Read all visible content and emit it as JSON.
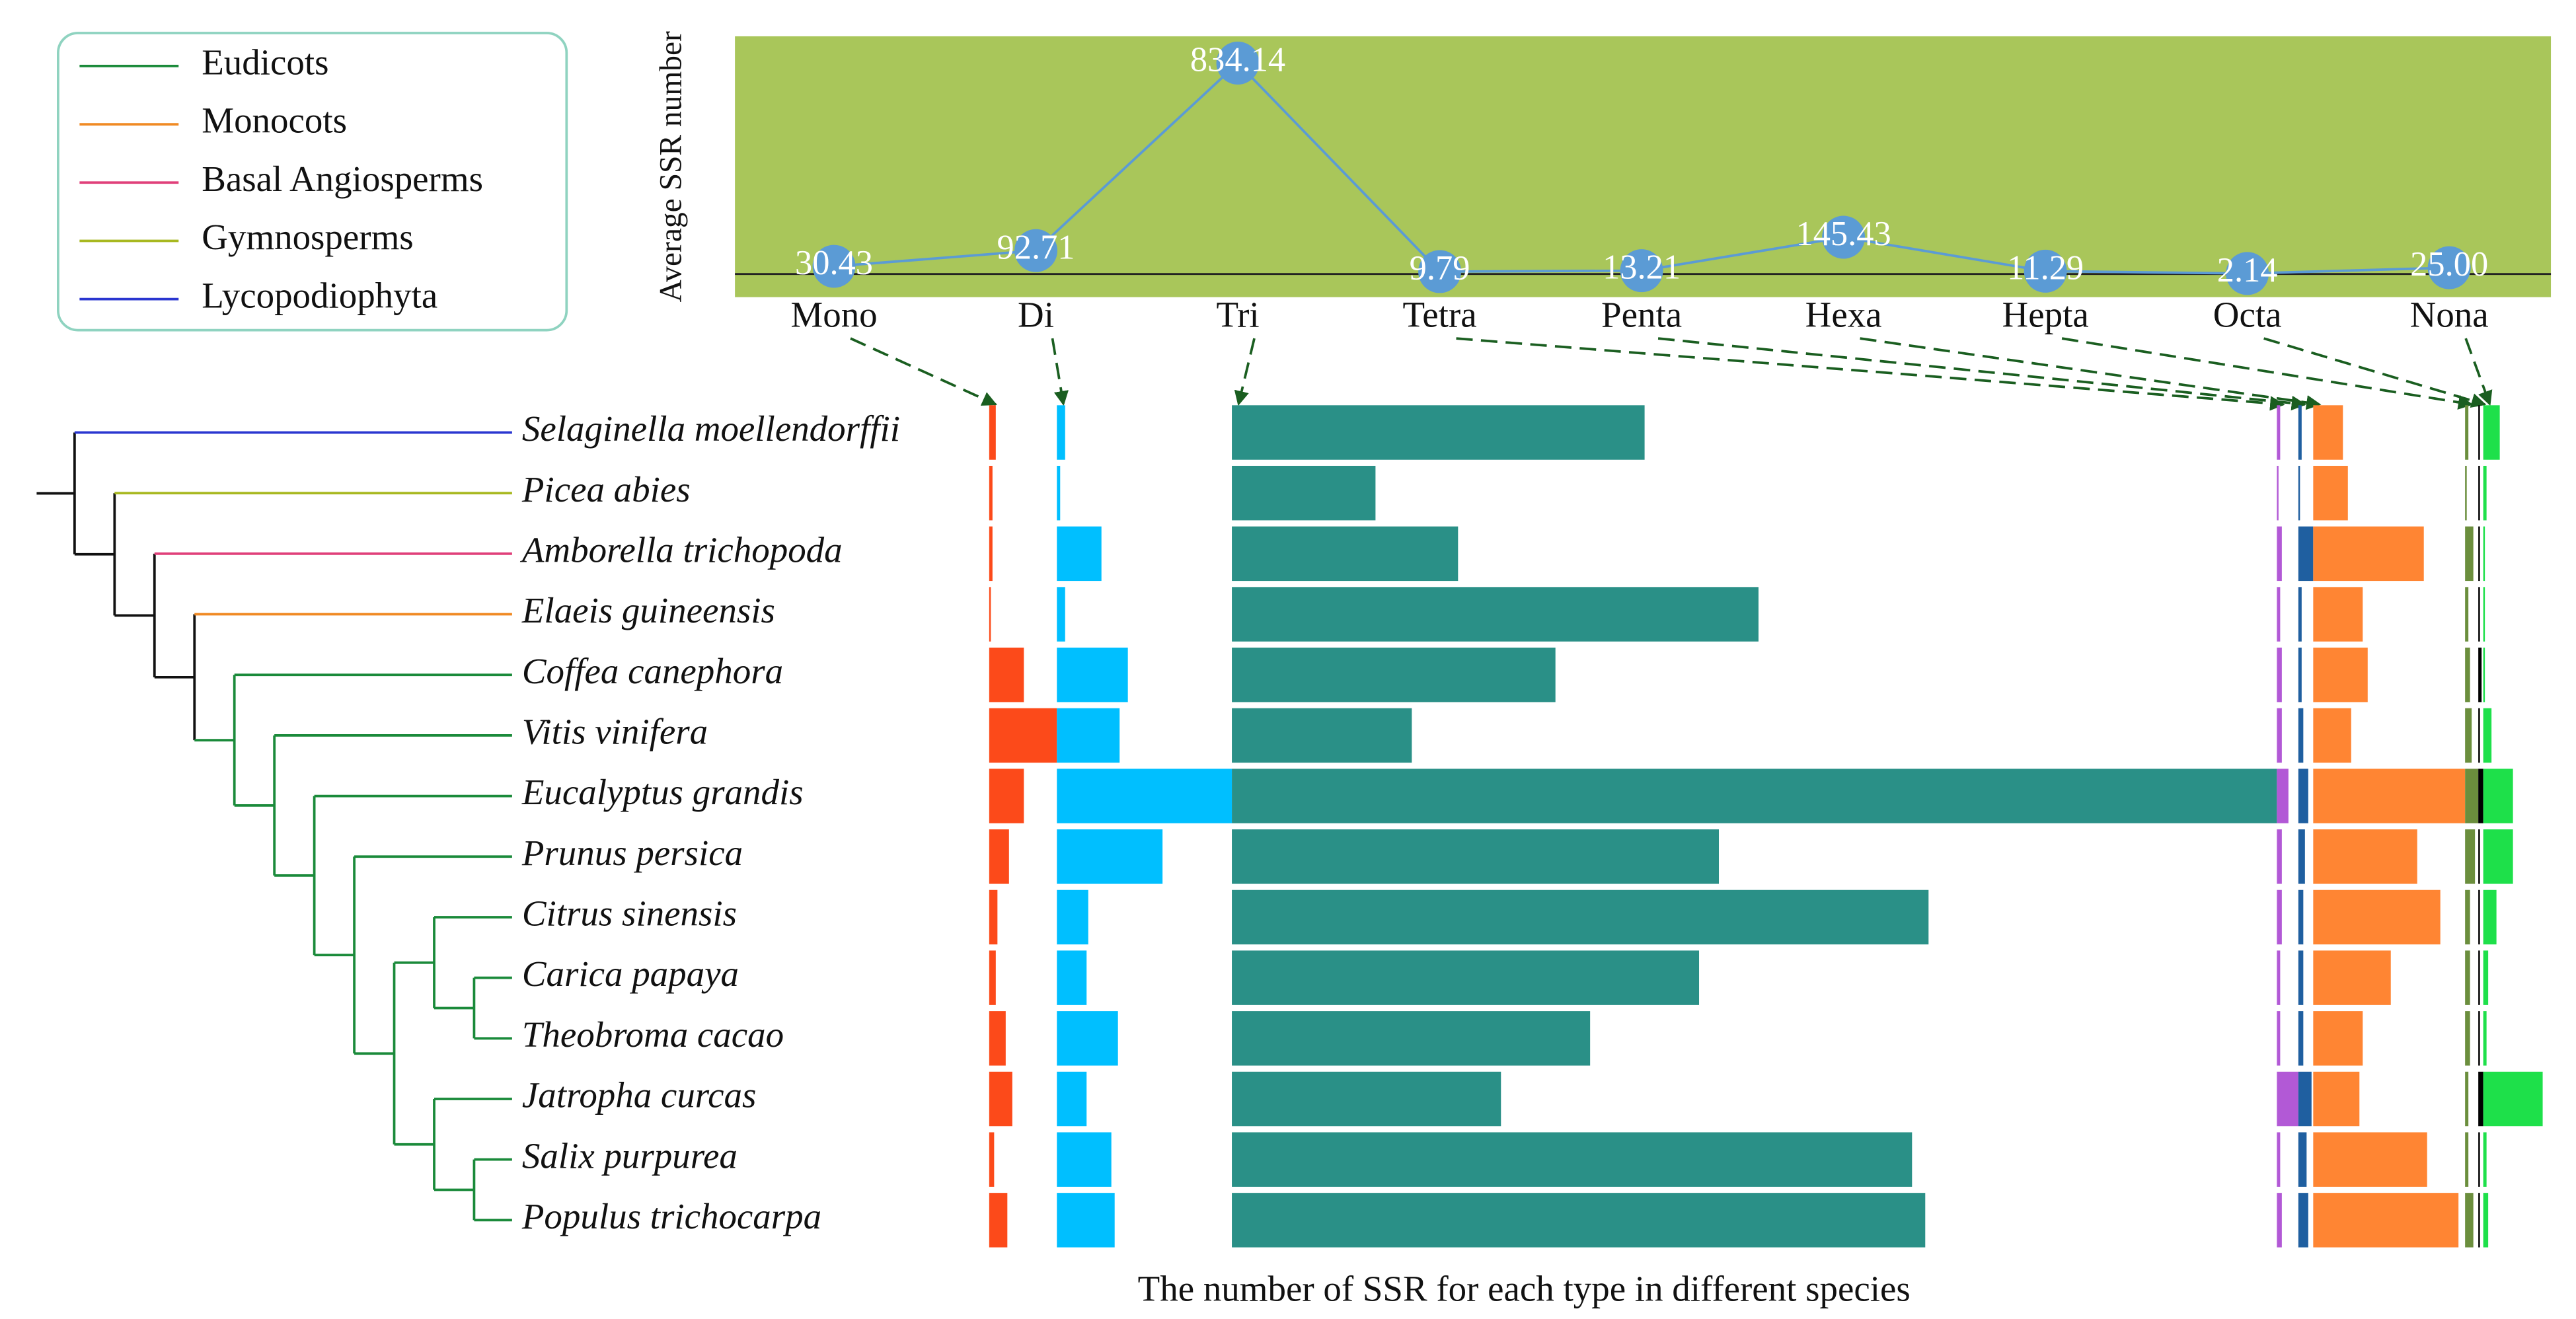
{
  "chart_data": [
    {
      "type": "line",
      "ylabel": "Average SSR number",
      "categories": [
        "Mono",
        "Di",
        "Tri",
        "Tetra",
        "Penta",
        "Hexa",
        "Hepta",
        "Octa",
        "Nona"
      ],
      "values": [
        30.43,
        92.71,
        834.14,
        9.79,
        13.21,
        145.43,
        11.29,
        2.14,
        25.0
      ],
      "value_labels": [
        "30.43",
        "92.71",
        "834.14",
        "9.79",
        "13.21",
        "145.43",
        "11.29",
        "2.14",
        "25.00"
      ],
      "color": "#5b9bd5",
      "background": "#a9c65a",
      "ylim": [
        0,
        940
      ]
    },
    {
      "type": "column-bars",
      "xlabel": "The number of SSR for each type in different species",
      "categories": [
        "Selaginella moellendorffii",
        "Picea abies",
        "Amborella trichopoda",
        "Elaeis guineensis",
        "Coffea canephora",
        "Vitis vinifera",
        "Eucalyptus grandis",
        "Prunus persica",
        "Citrus sinensis",
        "Carica papaya",
        "Theobroma cacao",
        "Jatropha curcas",
        "Salix purpurea",
        "Populus trichocarpa"
      ],
      "series": [
        {
          "color": "#fc4a1a",
          "values": [
            4,
            2,
            2,
            1,
            21,
            41,
            21,
            12,
            5,
            4,
            10,
            14,
            3,
            11
          ]
        },
        {
          "color": "#00bfff",
          "values": [
            5,
            2,
            27,
            5,
            43,
            38,
            106,
            64,
            19,
            18,
            37,
            18,
            33,
            35
          ]
        },
        {
          "color": "#2a9087",
          "values": [
            250,
            87,
            137,
            319,
            196,
            109,
            633,
            295,
            422,
            283,
            217,
            163,
            412,
            420
          ]
        },
        {
          "color": "#b259d6",
          "values": [
            2,
            1,
            3,
            2,
            3,
            3,
            7,
            3,
            3,
            2,
            2,
            13,
            2,
            3
          ]
        },
        {
          "color": "#1f5fa0",
          "values": [
            2,
            1,
            9,
            2,
            2,
            3,
            6,
            4,
            3,
            3,
            3,
            8,
            5,
            6
          ]
        },
        {
          "color": "#ff8533",
          "values": [
            18,
            21,
            67,
            30,
            33,
            23,
            92,
            63,
            77,
            47,
            30,
            28,
            69,
            88
          ]
        },
        {
          "color": "#6b8e3d",
          "values": [
            2,
            1,
            5,
            2,
            3,
            4,
            8,
            6,
            3,
            3,
            3,
            2,
            2,
            5
          ]
        },
        {
          "color": "#000000",
          "values": [
            1,
            1,
            1,
            1,
            2,
            1,
            3,
            1,
            1,
            1,
            1,
            3,
            1,
            1
          ]
        },
        {
          "color": "#1ee04a",
          "values": [
            10,
            2,
            1,
            1,
            1,
            5,
            18,
            18,
            8,
            3,
            2,
            36,
            2,
            3
          ]
        }
      ],
      "clades": [
        {
          "name": "Eudicots",
          "color": "#1a8a3a"
        },
        {
          "name": "Monocots",
          "color": "#f08a24"
        },
        {
          "name": "Basal Angiosperms",
          "color": "#e0407a"
        },
        {
          "name": "Gymnosperms",
          "color": "#a8b820"
        },
        {
          "name": "Lycopodiophyta",
          "color": "#2a36d0"
        }
      ]
    }
  ]
}
